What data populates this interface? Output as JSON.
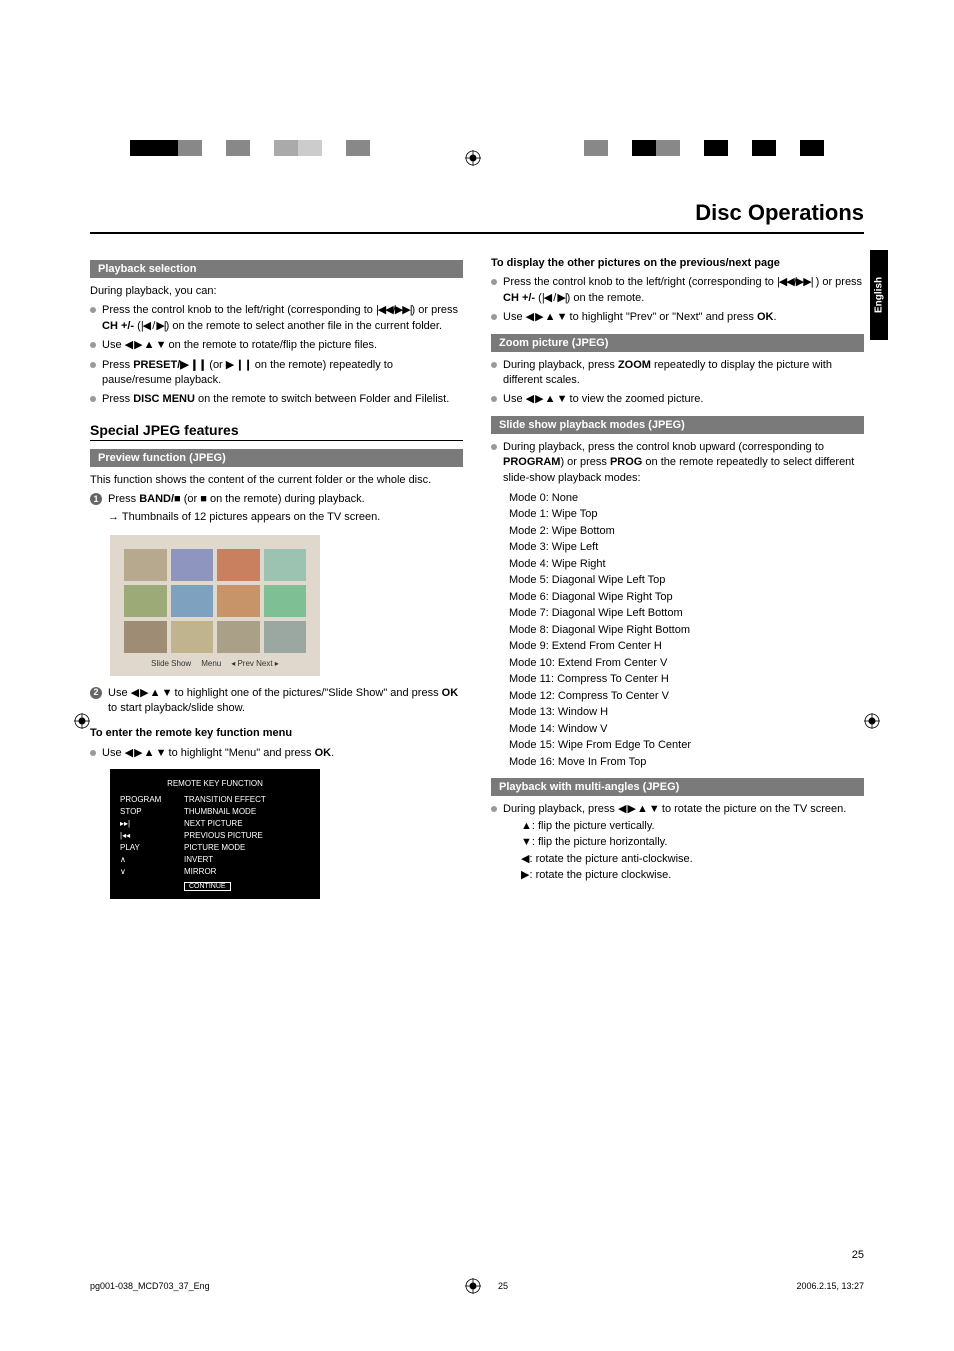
{
  "lang_tab": "English",
  "main_title": "Disc Operations",
  "crop_bars_left": [
    "#000000",
    "#000000",
    "#888888",
    "#ffffff",
    "#888888",
    "#ffffff",
    "#aaaaaa",
    "#cccccc",
    "#ffffff",
    "#888888",
    "#ffffff"
  ],
  "crop_bars_right": [
    "#ffffff",
    "#888888",
    "#ffffff",
    "#000000",
    "#888888",
    "#ffffff",
    "#000000",
    "#ffffff",
    "#000000",
    "#ffffff",
    "#000000"
  ],
  "left": {
    "sec1_title": "Playback selection",
    "sec1_intro": "During playback, you can:",
    "sec1_b1a": "Press the control knob to the left/right (corresponding to ",
    "sec1_b1b": ") or press ",
    "sec1_b1c": "CH +/-",
    "sec1_b1d": " (",
    "sec1_b1e": ")  on the remote to select another file in the current folder.",
    "sec1_b2a": "Use ",
    "sec1_b2b": " on the remote to rotate/flip the picture files.",
    "sec1_b3a": "Press ",
    "sec1_b3b": "PRESET/",
    "sec1_b3c": "  (or  ",
    "sec1_b3d": " on the remote) repeatedly to pause/resume playback.",
    "sec1_b4a": "Press ",
    "sec1_b4b": "DISC MENU",
    "sec1_b4c": " on the remote to switch between Folder and Filelist.",
    "h2": "Special JPEG features",
    "sec2_title": "Preview function (JPEG)",
    "sec2_intro": "This function shows the content of the current folder or the whole disc.",
    "sec2_s1a": "Press ",
    "sec2_s1b": "BAND/",
    "sec2_s1c": " (or ",
    "sec2_s1d": " on the remote) during playback.",
    "sec2_s1e": "→ Thumbnails of 12 pictures appears on the TV screen.",
    "thumb_caption": [
      "Slide Show",
      "Menu",
      "◂ Prev Next ▸"
    ],
    "thumb_colors": [
      "#b7a98e",
      "#8e96bf",
      "#c8805f",
      "#9cc2b1",
      "#9caa78",
      "#7ea1bf",
      "#c7946a",
      "#7ebf93",
      "#9f8c74",
      "#c0b48e",
      "#aaa088",
      "#9aa8a1"
    ],
    "sec2_s2a": "Use ",
    "sec2_s2b": " to highlight one of the pictures/\"Slide Show\" and press ",
    "sec2_s2c": "OK",
    "sec2_s2d": " to start playback/slide show.",
    "sec2_sub_h": "To enter the remote key function menu",
    "sec2_b1a": "Use ",
    "sec2_b1b": " to highlight \"Menu\" and press ",
    "sec2_b1c": "OK",
    "sec2_b1d": ".",
    "remote_title": "REMOTE KEY FUNCTION",
    "remote_rows": [
      {
        "k": "PROGRAM",
        "v": "TRANSITION EFFECT"
      },
      {
        "k": "STOP",
        "v": "THUMBNAIL MODE"
      },
      {
        "k": "▸▸|",
        "v": "NEXT PICTURE"
      },
      {
        "k": "|◂◂",
        "v": "PREVIOUS PICTURE"
      },
      {
        "k": "PLAY",
        "v": "PICTURE MODE"
      },
      {
        "k": "∧",
        "v": "INVERT"
      },
      {
        "k": "∨",
        "v": "MIRROR"
      }
    ],
    "remote_continue": "CONTINUE"
  },
  "right": {
    "top_h": "To display the other pictures on the previous/next page",
    "top_b1a": "Press the control knob to the left/right (corresponding to ",
    "top_b1b": " ) or press ",
    "top_b1c": "CH +/-",
    "top_b1d": " (",
    "top_b1e": ") on the remote.",
    "top_b2a": "Use ",
    "top_b2b": " to highlight \"Prev\" or \"Next\" and press ",
    "top_b2c": "OK",
    "top_b2d": ".",
    "sec3_title": "Zoom picture (JPEG)",
    "sec3_b1a": "During playback, press ",
    "sec3_b1b": "ZOOM",
    "sec3_b1c": " repeatedly to display the picture with different scales.",
    "sec3_b2a": "Use ",
    "sec3_b2b": " to view the zoomed picture.",
    "sec4_title": "Slide show playback modes (JPEG)",
    "sec4_b1a": "During playback, press the control knob upward (corresponding to ",
    "sec4_b1b": "PROGRAM",
    "sec4_b1c": ") or press ",
    "sec4_b1d": "PROG",
    "sec4_b1e": " on the remote repeatedly to select different slide-show playback modes:",
    "modes": [
      "Mode 0: None",
      "Mode 1: Wipe Top",
      "Mode 2: Wipe Bottom",
      "Mode 3: Wipe Left",
      "Mode 4: Wipe Right",
      "Mode 5: Diagonal Wipe Left Top",
      "Mode 6: Diagonal Wipe Right Top",
      "Mode 7: Diagonal Wipe Left Bottom",
      "Mode 8: Diagonal Wipe Right Bottom",
      "Mode 9: Extend From Center H",
      "Mode 10: Extend From Center V",
      "Mode 11: Compress To Center H",
      "Mode 12: Compress To Center V",
      "Mode 13: Window H",
      "Mode 14: Window V",
      "Mode 15: Wipe From Edge To Center",
      "Mode 16: Move In From Top"
    ],
    "sec5_title": "Playback with multi-angles (JPEG)",
    "sec5_b1a": "During playback, press ",
    "sec5_b1b": " to rotate the picture on the TV screen.",
    "sec5_l1": "▲: flip the picture vertically.",
    "sec5_l2": "▼:  flip the picture horizontally.",
    "sec5_l3": "◀: rotate the picture anti-clockwise.",
    "sec5_l4": "▶: rotate the picture clockwise."
  },
  "page_num": "25",
  "footer": {
    "left": "pg001-038_MCD703_37_Eng",
    "mid": "25",
    "right": "2006.2.15, 13:27"
  }
}
